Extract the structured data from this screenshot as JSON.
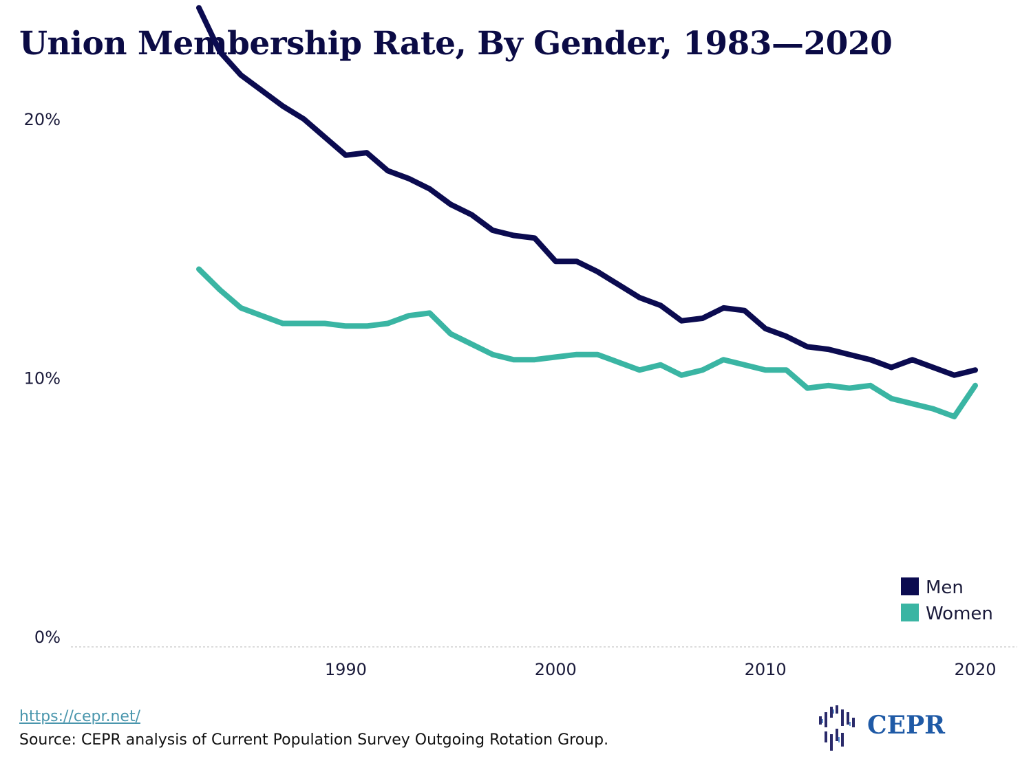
{
  "chart_data": {
    "type": "line",
    "title": "Union Membership Rate, By Gender, 1983—2020",
    "xlabel": "",
    "ylabel": "",
    "x_ticks": [
      {
        "value": 1990,
        "label": "1990"
      },
      {
        "value": 2000,
        "label": "2000"
      },
      {
        "value": 2010,
        "label": "2010"
      },
      {
        "value": 2020,
        "label": "2020"
      }
    ],
    "y_ticks": [
      {
        "value": 0,
        "label": "0%"
      },
      {
        "value": 10,
        "label": "10%"
      },
      {
        "value": 20,
        "label": "20%"
      }
    ],
    "xlim": [
      1976.9,
      2022
    ],
    "ylim": [
      0,
      25
    ],
    "grid": false,
    "legend_position": "bottom-right",
    "x": [
      1983,
      1984,
      1985,
      1986,
      1987,
      1988,
      1989,
      1990,
      1991,
      1992,
      1993,
      1994,
      1995,
      1996,
      1997,
      1998,
      1999,
      2000,
      2001,
      2002,
      2003,
      2004,
      2005,
      2006,
      2007,
      2008,
      2009,
      2010,
      2011,
      2012,
      2013,
      2014,
      2015,
      2016,
      2017,
      2018,
      2019,
      2020
    ],
    "series": [
      {
        "name": "Men",
        "color": "#0b0b50",
        "values": [
          24.7,
          23.0,
          22.1,
          21.5,
          20.9,
          20.4,
          19.7,
          19.0,
          19.1,
          18.4,
          18.1,
          17.7,
          17.1,
          16.7,
          16.1,
          15.9,
          15.8,
          14.9,
          14.9,
          14.5,
          14.0,
          13.5,
          13.2,
          12.6,
          12.7,
          13.1,
          13.0,
          12.3,
          12.0,
          11.6,
          11.5,
          11.3,
          11.1,
          10.8,
          11.1,
          10.8,
          10.5,
          10.7
        ]
      },
      {
        "name": "Women",
        "color": "#3ab5a3",
        "values": [
          14.6,
          13.8,
          13.1,
          12.8,
          12.5,
          12.5,
          12.5,
          12.4,
          12.4,
          12.5,
          12.8,
          12.9,
          12.1,
          11.7,
          11.3,
          11.1,
          11.1,
          11.2,
          11.3,
          11.3,
          11.0,
          10.7,
          10.9,
          10.5,
          10.7,
          11.1,
          10.9,
          10.7,
          10.7,
          10.0,
          10.1,
          10.0,
          10.1,
          9.6,
          9.4,
          9.2,
          8.9,
          10.1
        ]
      }
    ]
  },
  "footer": {
    "link": "https://cepr.net/",
    "source": "Source: CEPR analysis of Current Population Survey Outgoing Rotation Group."
  },
  "logo": {
    "text": "CEPR",
    "icon": "cepr-bars-icon"
  }
}
